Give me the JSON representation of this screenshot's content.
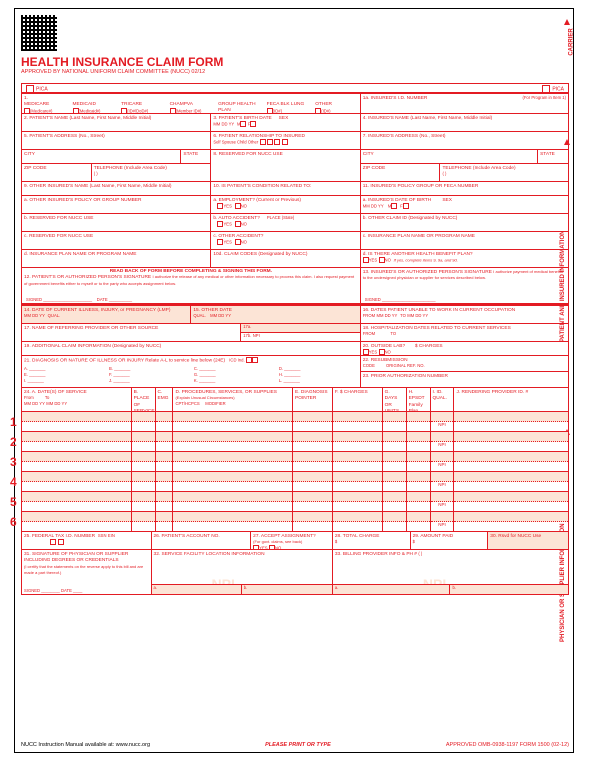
{
  "header": {
    "title": "HEALTH INSURANCE CLAIM FORM",
    "subtitle": "APPROVED BY NATIONAL UNIFORM CLAIM COMMITTEE (NUCC) 02/12",
    "pica": "PICA",
    "carrier": "CARRIER"
  },
  "box1": {
    "label": "1.",
    "options": [
      "MEDICARE",
      "MEDICAID",
      "TRICARE",
      "CHAMPVA",
      "GROUP HEALTH PLAN",
      "FECA BLK LUNG",
      "OTHER"
    ],
    "subs": [
      "(Medicare#)",
      "(Medicaid#)",
      "(ID#/DoD#)",
      "(Member ID#)",
      "(ID#)",
      "(ID#)",
      "(ID#)"
    ]
  },
  "box1a": {
    "label": "1a. INSURED'S I.D. NUMBER",
    "note": "(For Program in Item 1)"
  },
  "box2": {
    "label": "2. PATIENT'S NAME (Last Name, First Name, Middle Initial)"
  },
  "box3": {
    "label": "3. PATIENT'S BIRTH DATE",
    "mdy": "MM    DD    YY",
    "sex": "SEX",
    "m": "M",
    "f": "F"
  },
  "box4": {
    "label": "4. INSURED'S NAME (Last Name, First Name, Middle Initial)"
  },
  "box5": {
    "label": "5. PATIENT'S ADDRESS (No., Street)"
  },
  "box6": {
    "label": "6. PATIENT RELATIONSHIP TO INSURED",
    "opts": "Self    Spouse    Child    Other"
  },
  "box7": {
    "label": "7. INSURED'S ADDRESS (No., Street)"
  },
  "city": "CITY",
  "state": "STATE",
  "zip": "ZIP CODE",
  "phone": "TELEPHONE (Include Area Code)",
  "paren": "(        )",
  "box8": {
    "label": "8. RESERVED FOR NUCC USE"
  },
  "box9": {
    "label": "9. OTHER INSURED'S NAME (Last Name, First Name, Middle Initial)"
  },
  "box9a": {
    "label": "a. OTHER INSURED'S POLICY OR GROUP NUMBER"
  },
  "box9b": {
    "label": "b. RESERVED FOR NUCC USE"
  },
  "box9c": {
    "label": "c. RESERVED FOR NUCC USE"
  },
  "box9d": {
    "label": "d. INSURANCE PLAN NAME OR PROGRAM NAME"
  },
  "box10": {
    "label": "10. IS PATIENT'S CONDITION RELATED TO:"
  },
  "box10a": {
    "label": "a. EMPLOYMENT? (Current or Previous)",
    "yes": "YES",
    "no": "NO"
  },
  "box10b": {
    "label": "b. AUTO ACCIDENT?",
    "place": "PLACE (State)"
  },
  "box10c": {
    "label": "c. OTHER ACCIDENT?"
  },
  "box10d": {
    "label": "10d. CLAIM CODES (Designated by NUCC)"
  },
  "box11": {
    "label": "11. INSURED'S POLICY GROUP OR FECA NUMBER"
  },
  "box11a": {
    "label": "a. INSURED'S DATE OF BIRTH",
    "sex": "SEX"
  },
  "box11b": {
    "label": "b. OTHER CLAIM ID (Designated by NUCC)"
  },
  "box11c": {
    "label": "c. INSURANCE PLAN NAME OR PROGRAM NAME"
  },
  "box11d": {
    "label": "d. IS THERE ANOTHER HEALTH BENEFIT PLAN?",
    "note": "If yes, complete items 9, 9a, and 9d."
  },
  "readback": "READ BACK OF FORM BEFORE COMPLETING & SIGNING THIS FORM.",
  "box12": {
    "label": "12. PATIENT'S OR AUTHORIZED PERSON'S SIGNATURE",
    "text": "I authorize the release of any medical or other information necessary to process this claim. I also request payment of government benefits either to myself or to the party who accepts assignment below.",
    "signed": "SIGNED",
    "date": "DATE"
  },
  "box13": {
    "label": "13. INSURED'S OR AUTHORIZED PERSON'S SIGNATURE",
    "text": "I authorize payment of medical benefits to the undersigned physician or supplier for services described below.",
    "signed": "SIGNED"
  },
  "box14": {
    "label": "14. DATE OF CURRENT ILLNESS, INJURY, or PREGNANCY (LMP)",
    "qual": "QUAL."
  },
  "box15": {
    "label": "15. OTHER DATE",
    "qual": "QUAL."
  },
  "box16": {
    "label": "16. DATES PATIENT UNABLE TO WORK IN CURRENT OCCUPATION",
    "from": "FROM",
    "to": "TO"
  },
  "box17": {
    "label": "17. NAME OF REFERRING PROVIDER OR OTHER SOURCE",
    "a": "17a.",
    "b": "17b.",
    "npi": "NPI"
  },
  "box18": {
    "label": "18. HOSPITALIZATION DATES RELATED TO CURRENT SERVICES"
  },
  "box19": {
    "label": "19. ADDITIONAL CLAIM INFORMATION (Designated by NUCC)"
  },
  "box20": {
    "label": "20. OUTSIDE LAB?",
    "charges": "$ CHARGES"
  },
  "box21": {
    "label": "21. DIAGNOSIS OR NATURE OF ILLNESS OR INJURY  Relate A-L to service line below (24E)",
    "icd": "ICD Ind.",
    "letters": [
      "A.",
      "B.",
      "C.",
      "D.",
      "E.",
      "F.",
      "G.",
      "H.",
      "I.",
      "J.",
      "K.",
      "L."
    ]
  },
  "box22": {
    "label": "22. RESUBMISSION",
    "code": "CODE",
    "orig": "ORIGINAL REF. NO."
  },
  "box23": {
    "label": "23. PRIOR AUTHORIZATION NUMBER"
  },
  "box24hdr": {
    "a": "24. A.    DATE(S) OF SERVICE",
    "from": "From",
    "to": "To",
    "mdy": "MM  DD  YY",
    "b": "B. PLACE OF SERVICE",
    "c": "C. EMG",
    "d": "D. PROCEDURES, SERVICES, OR SUPPLIES",
    "dexp": "(Explain Unusual Circumstances)",
    "cpt": "CPT/HCPCS",
    "mod": "MODIFIER",
    "e": "E. DIAGNOSIS POINTER",
    "f": "F. $ CHARGES",
    "g": "G. DAYS OR UNITS",
    "h": "H. EPSDT Family Plan",
    "i": "I. ID. QUAL.",
    "j": "J. RENDERING PROVIDER ID. #",
    "npi": "NPI"
  },
  "rows": [
    "1",
    "2",
    "3",
    "4",
    "5",
    "6"
  ],
  "box25": {
    "label": "25. FEDERAL TAX I.D. NUMBER",
    "ssn": "SSN",
    "ein": "EIN"
  },
  "box26": {
    "label": "26. PATIENT'S ACCOUNT NO."
  },
  "box27": {
    "label": "27. ACCEPT ASSIGNMENT?",
    "sub": "(For govt. claims, see back)"
  },
  "box28": {
    "label": "28. TOTAL CHARGE",
    "d": "$"
  },
  "box29": {
    "label": "29. AMOUNT PAID",
    "d": "$"
  },
  "box30": {
    "label": "30. Rsvd for NUCC Use"
  },
  "box31": {
    "label": "31. SIGNATURE OF PHYSICIAN OR SUPPLIER INCLUDING DEGREES OR CREDENTIALS",
    "text": "(I certify that the statements on the reverse apply to this bill and are made a part thereof.)",
    "signed": "SIGNED",
    "date": "DATE"
  },
  "box32": {
    "label": "32. SERVICE FACILITY LOCATION INFORMATION",
    "a": "a.",
    "b": "b."
  },
  "box33": {
    "label": "33. BILLING PROVIDER INFO & PH #",
    "paren": "(       )",
    "a": "a.",
    "b": "b."
  },
  "footer": {
    "left": "NUCC Instruction Manual available at: www.nucc.org",
    "mid": "PLEASE PRINT OR TYPE",
    "right": "APPROVED OMB-0938-1197 FORM 1500 (02-12)"
  },
  "side1": "PATIENT AND INSURED INFORMATION",
  "side2": "PHYSICIAN OR SUPPLIER INFORMATION",
  "yes": "YES",
  "no": "NO",
  "colors": {
    "red": "#e31b23",
    "pink": "#fce4d6"
  }
}
